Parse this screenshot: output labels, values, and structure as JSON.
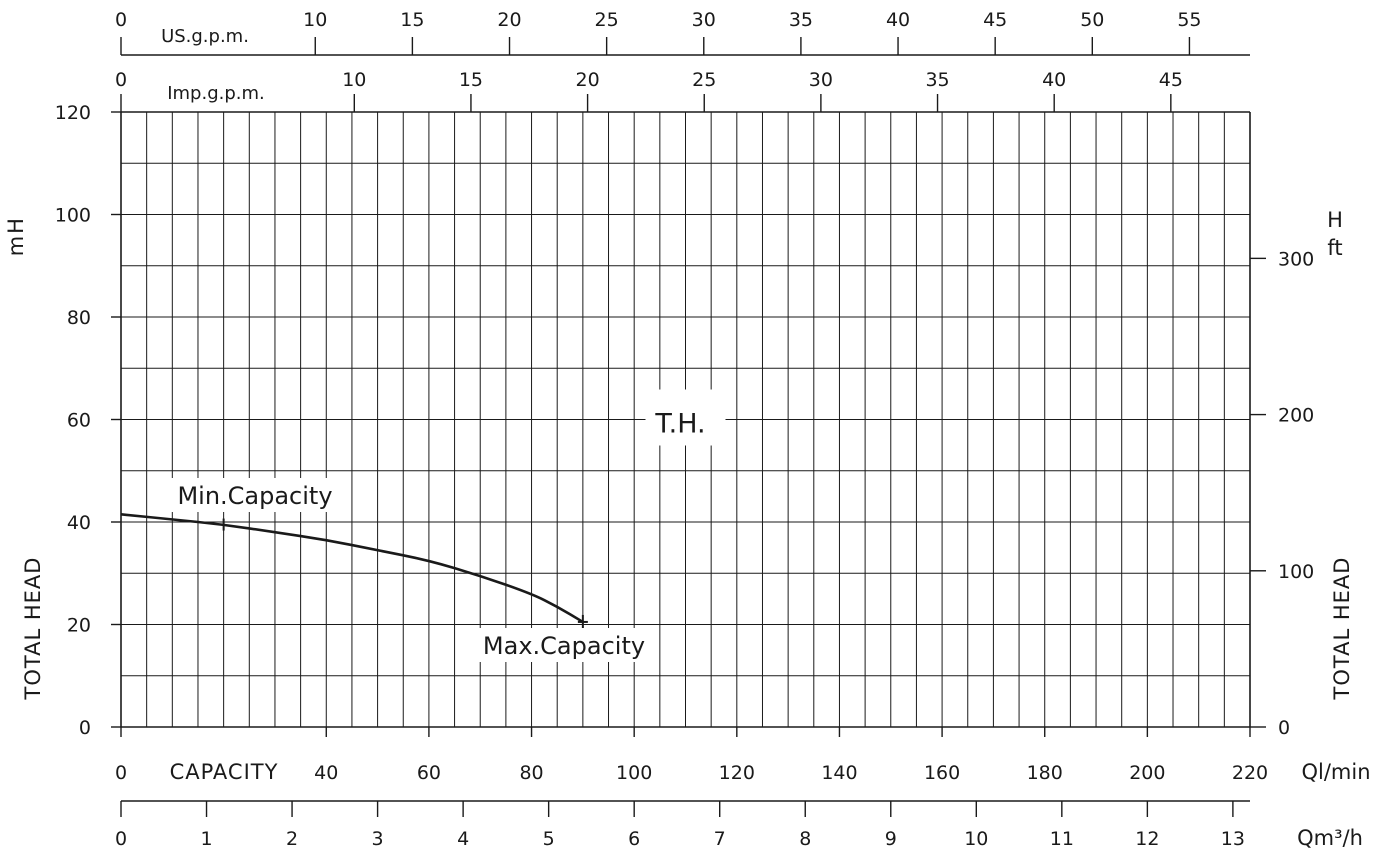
{
  "chart_data": {
    "type": "line",
    "title": "T.H.",
    "x_axis": {
      "label": "CAPACITY",
      "unit": "Ql/min",
      "range": [
        0,
        220
      ],
      "ticks": [
        "0",
        "40",
        "60",
        "80",
        "100",
        "120",
        "140",
        "160",
        "180",
        "200",
        "220"
      ]
    },
    "y_axis_left": {
      "label": "TOTAL HEAD",
      "unit_top": "H",
      "unit_bottom": "m",
      "range": [
        0,
        120
      ],
      "ticks": [
        "0",
        "20",
        "40",
        "60",
        "80",
        "100",
        "120"
      ]
    },
    "y_axis_right": {
      "label": "TOTAL HEAD",
      "unit_top": "H",
      "unit_bottom": "ft",
      "ticks": [
        {
          "value": 0,
          "label": "0"
        },
        {
          "value": 100,
          "label": "100"
        },
        {
          "value": 200,
          "label": "200"
        },
        {
          "value": 300,
          "label": "300"
        }
      ]
    },
    "top_axis_us": {
      "label": "US.g.p.m.",
      "ticks": [
        {
          "value": 0,
          "label": "0"
        },
        {
          "value": 10,
          "label": "10"
        },
        {
          "value": 15,
          "label": "15"
        },
        {
          "value": 20,
          "label": "20"
        },
        {
          "value": 25,
          "label": "25"
        },
        {
          "value": 30,
          "label": "30"
        },
        {
          "value": 35,
          "label": "35"
        },
        {
          "value": 40,
          "label": "40"
        },
        {
          "value": 45,
          "label": "45"
        },
        {
          "value": 50,
          "label": "50"
        },
        {
          "value": 55,
          "label": "55"
        }
      ]
    },
    "top_axis_imp": {
      "label": "Imp.g.p.m.",
      "ticks": [
        {
          "value": 0,
          "label": "0"
        },
        {
          "value": 10,
          "label": "10"
        },
        {
          "value": 15,
          "label": "15"
        },
        {
          "value": 20,
          "label": "20"
        },
        {
          "value": 25,
          "label": "25"
        },
        {
          "value": 30,
          "label": "30"
        },
        {
          "value": 35,
          "label": "35"
        },
        {
          "value": 40,
          "label": "40"
        },
        {
          "value": 45,
          "label": "45"
        }
      ]
    },
    "bottom_axis_m3h": {
      "unit": "Qm³/h",
      "ticks": [
        "0",
        "1",
        "2",
        "3",
        "4",
        "5",
        "6",
        "7",
        "8",
        "9",
        "10",
        "11",
        "12",
        "13"
      ]
    },
    "series": [
      {
        "x": [
          0,
          10,
          20,
          30,
          40,
          50,
          60,
          70,
          80,
          85,
          90
        ],
        "y": [
          41.5,
          40.5,
          39.5,
          38,
          36.5,
          34.5,
          32.5,
          29.5,
          26,
          23.5,
          20.5
        ]
      }
    ],
    "annotations": [
      {
        "text": "Min.Capacity",
        "x": 20,
        "y": 39.5
      },
      {
        "text": "Max.Capacity",
        "x": 90,
        "y": 20.5
      }
    ],
    "grid": true
  }
}
